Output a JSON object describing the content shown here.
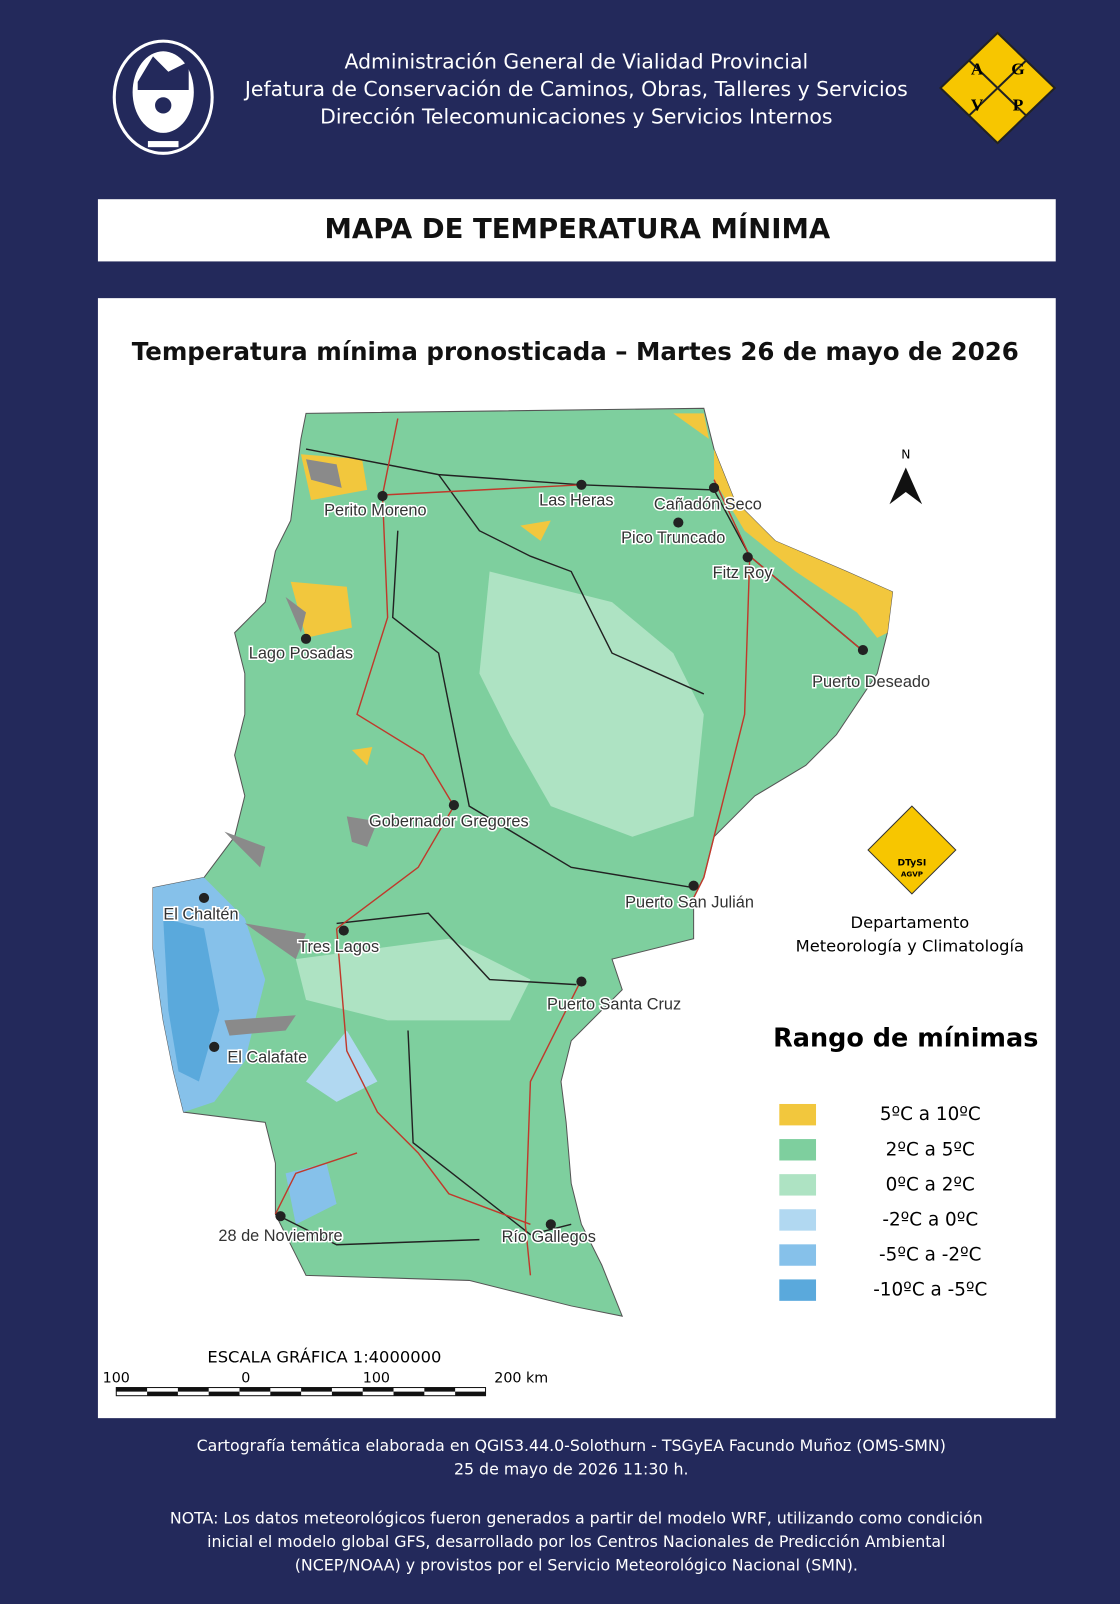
{
  "header": {
    "lines": [
      "Administración General de Vialidad Provincial",
      "Jefatura de Conservación de Caminos, Obras, Talleres y Servicios",
      "Dirección Telecomunicaciones y Servicios Internos"
    ],
    "logo_letters": [
      "A",
      "G",
      "V",
      "P"
    ]
  },
  "title": "MAPA DE TEMPERATURA MÍNIMA",
  "map": {
    "subtitle": "Temperatura mínima pronosticada – Martes 26 de mayo de 2026",
    "north": "N",
    "cities": [
      "Perito Moreno",
      "Las Heras",
      "Cañadón Seco",
      "Pico Truncado",
      "Fitz Roy",
      "Lago Posadas",
      "Puerto Deseado",
      "Gobernador Gregores",
      "Puerto San Julián",
      "El Chaltén",
      "Tres Lagos",
      "Puerto Santa Cruz",
      "El Calafate",
      "28 de Noviembre",
      "Río Gallegos"
    ],
    "dept_logo": [
      "DTySI",
      "AGVP"
    ],
    "department": [
      "Departamento",
      "Meteorología y Climatología"
    ],
    "legend": {
      "title": "Rango  de mínimas",
      "items": [
        {
          "label": "5ºC a 10ºC",
          "color": "#f2c73d"
        },
        {
          "label": "2ºC a 5ºC",
          "color": "#7ecf9e"
        },
        {
          "label": "0ºC a 2ºC",
          "color": "#aee3c3"
        },
        {
          "label": "-2ºC a 0ºC",
          "color": "#b1d8f1"
        },
        {
          "label": "-5ºC a -2ºC",
          "color": "#86c1ea"
        },
        {
          "label": "-10ºC a -5ºC",
          "color": "#5aa9dc"
        }
      ]
    },
    "scale": {
      "title": "ESCALA GRÁFICA 1:4000000",
      "labels": [
        "100",
        "0",
        "100",
        "200 km"
      ]
    }
  },
  "footer": {
    "credit": [
      "Cartografía temática elaborada en QGIS3.44.0-Solothurn - TSGyEA Facundo Muñoz (OMS-SMN)",
      "25 de mayo de 2026 11:30 h."
    ],
    "note": [
      "NOTA: Los datos meteorológicos fueron generados a partir del modelo WRF, utilizando como condición",
      "inicial el modelo global GFS, desarrollado por los Centros Nacionales de Predicción Ambiental",
      "(NCEP/NOAA) y provistos por el Servicio Meteorológico Nacional (SMN)."
    ]
  }
}
